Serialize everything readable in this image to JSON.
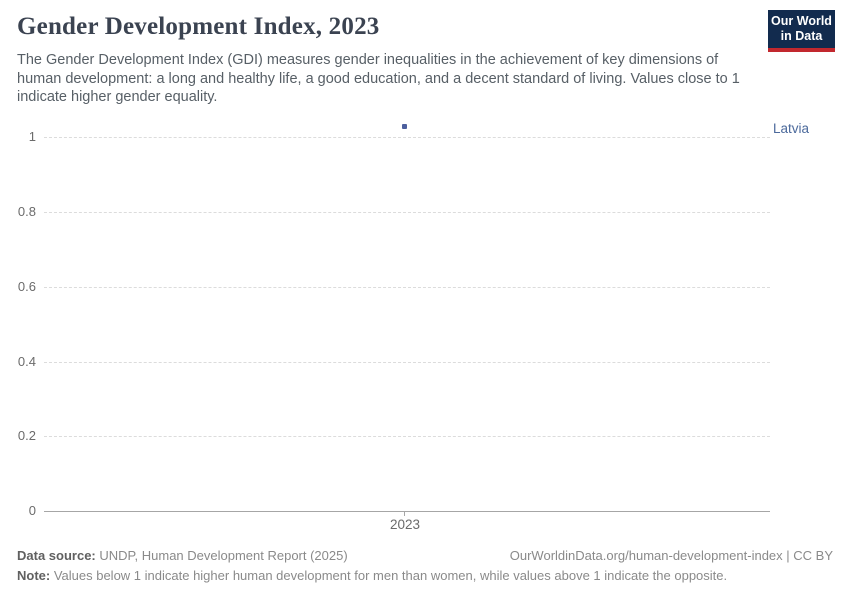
{
  "header": {
    "title": "Gender Development Index, 2023",
    "subtitle": "The Gender Development Index (GDI) measures gender inequalities in the achievement of key dimensions of human development: a long and healthy life, a good education, and a decent standard of living. Values close to 1 indicate higher gender equality.",
    "logo": {
      "line1": "Our World",
      "line2": "in Data"
    }
  },
  "chart": {
    "entity_label": "Latvia",
    "x_tick_label": "2023",
    "y_tick_labels": [
      "1",
      "0.8",
      "0.6",
      "0.4",
      "0.2",
      "0"
    ]
  },
  "chart_data": {
    "type": "scatter",
    "title": "Gender Development Index, 2023",
    "series": [
      {
        "name": "Latvia",
        "points": [
          {
            "x": 2023,
            "y": 1.02
          }
        ]
      }
    ],
    "x_ticks": [
      "2023"
    ],
    "y_ticks": [
      0,
      0.2,
      0.4,
      0.6,
      0.8,
      1
    ],
    "ylim": [
      0,
      1.05
    ],
    "xlabel": "",
    "ylabel": "",
    "grid": "horizontal-dashed",
    "legend_position": "label-right-of-plot",
    "point_color": "#4c6a9c"
  },
  "footer": {
    "data_source_label": "Data source:",
    "data_source_text": " UNDP, Human Development Report (2025)",
    "attribution": "OurWorldinData.org/human-development-index | CC BY",
    "note_label": "Note:",
    "note_text": " Values below 1 indicate higher human development for men than women, while values above 1 indicate the opposite."
  },
  "colors": {
    "accent": "#4c6a9c",
    "logo_background": "#122b4e",
    "logo_stripe": "#c2282e",
    "title_text": "#3b4351",
    "subtitle_text": "#575f66",
    "axis_text": "#6b6b6b",
    "footer_text": "#8a8a8a",
    "gridline": "#dcdcdc",
    "axis_line": "#a6a6a6"
  }
}
